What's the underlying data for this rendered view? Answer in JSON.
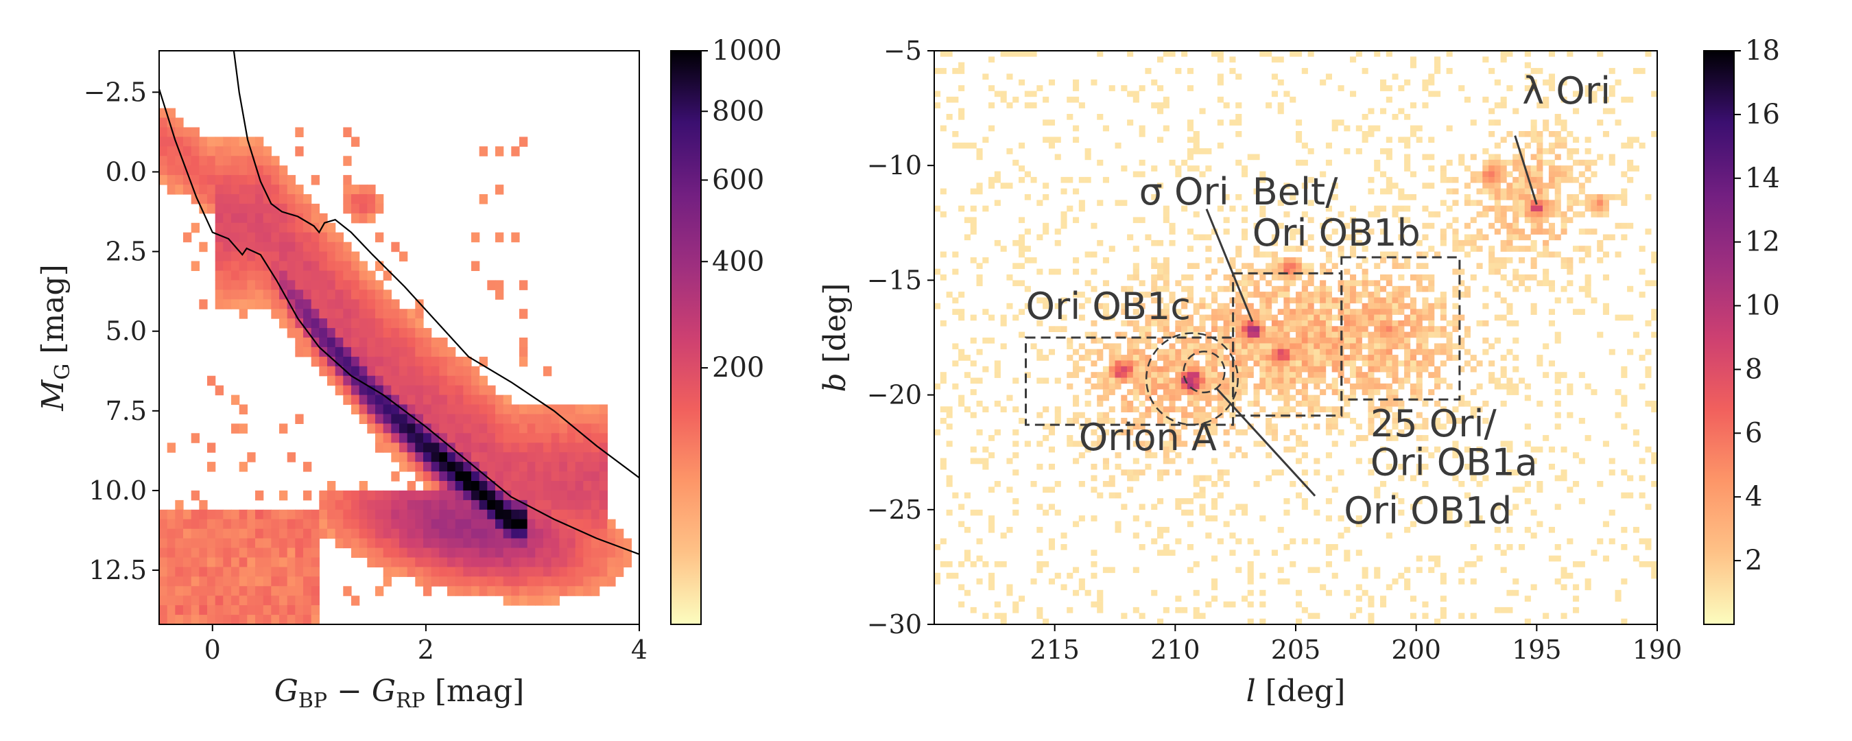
{
  "chart_data": [
    {
      "type": "heatmap",
      "panel": "left",
      "xlabel_main": "G",
      "xlabel_sub1": "BP",
      "xlabel_mid": " − ",
      "xlabel_main2": "G",
      "xlabel_sub2": "RP",
      "xlabel_unit": " [mag]",
      "ylabel_main": "M",
      "ylabel_sub": "G",
      "ylabel_unit": " [mag]",
      "xlim": [
        -0.5,
        4
      ],
      "ylim": [
        14.2,
        -3.8
      ],
      "y_inverted": true,
      "xticks": [
        {
          "v": 0,
          "label": "0"
        },
        {
          "v": 2,
          "label": "2"
        },
        {
          "v": 4,
          "label": "4"
        }
      ],
      "yticks": [
        {
          "v": -2.5,
          "label": "−2.5"
        },
        {
          "v": 0.0,
          "label": "0.0"
        },
        {
          "v": 2.5,
          "label": "2.5"
        },
        {
          "v": 5.0,
          "label": "5.0"
        },
        {
          "v": 7.5,
          "label": "7.5"
        },
        {
          "v": 10.0,
          "label": "10.0"
        },
        {
          "v": 12.5,
          "label": "12.5"
        }
      ],
      "colorbar": {
        "cmap": "magma_r",
        "range": [
          0,
          1000
        ],
        "scale": "sqrt",
        "ticks": [
          {
            "v": 200,
            "label": "200"
          },
          {
            "v": 400,
            "label": "400"
          },
          {
            "v": 600,
            "label": "600"
          },
          {
            "v": 800,
            "label": "800"
          },
          {
            "v": 1000,
            "label": "1000"
          }
        ]
      },
      "main_sequence_ridge": [
        [
          0.5,
          2.8
        ],
        [
          1.0,
          5.0
        ],
        [
          1.5,
          7.0
        ],
        [
          2.0,
          8.6
        ],
        [
          2.5,
          10.0
        ],
        [
          2.8,
          11.0
        ]
      ],
      "giant_branch_feature": [
        [
          1.25,
          0.5
        ],
        [
          1.5,
          1.4
        ]
      ],
      "selection_boundary_lower": [
        [
          -0.5,
          -2.6
        ],
        [
          -0.35,
          -1.0
        ],
        [
          -0.15,
          0.8
        ],
        [
          0.0,
          1.9
        ],
        [
          0.15,
          2.1
        ],
        [
          0.28,
          2.6
        ],
        [
          0.32,
          2.4
        ],
        [
          0.45,
          2.6
        ],
        [
          0.6,
          3.4
        ],
        [
          0.8,
          4.6
        ],
        [
          1.0,
          5.5
        ],
        [
          1.3,
          6.4
        ],
        [
          1.6,
          7.0
        ],
        [
          2.0,
          8.0
        ],
        [
          2.4,
          9.1
        ],
        [
          2.8,
          10.2
        ],
        [
          3.2,
          10.9
        ],
        [
          3.6,
          11.5
        ],
        [
          4.0,
          12.0
        ]
      ],
      "selection_boundary_upper": [
        [
          0.2,
          -3.8
        ],
        [
          0.25,
          -2.5
        ],
        [
          0.33,
          -1.0
        ],
        [
          0.45,
          0.3
        ],
        [
          0.55,
          1.0
        ],
        [
          0.65,
          1.25
        ],
        [
          0.8,
          1.4
        ],
        [
          0.95,
          1.7
        ],
        [
          1.0,
          1.9
        ],
        [
          1.05,
          1.6
        ],
        [
          1.15,
          1.5
        ],
        [
          1.3,
          1.9
        ],
        [
          1.5,
          2.6
        ],
        [
          1.8,
          3.6
        ],
        [
          2.1,
          4.7
        ],
        [
          2.4,
          5.8
        ],
        [
          2.8,
          6.6
        ],
        [
          3.2,
          7.5
        ],
        [
          3.6,
          8.6
        ],
        [
          4.0,
          9.6
        ]
      ]
    },
    {
      "type": "heatmap",
      "panel": "right",
      "xlabel_main": "l",
      "xlabel_unit": " [deg]",
      "ylabel_main": "b",
      "ylabel_unit": " [deg]",
      "xlim": [
        220,
        190
      ],
      "ylim": [
        -30,
        -5
      ],
      "x_inverted": true,
      "xticks": [
        {
          "v": 215,
          "label": "215"
        },
        {
          "v": 210,
          "label": "210"
        },
        {
          "v": 205,
          "label": "205"
        },
        {
          "v": 200,
          "label": "200"
        },
        {
          "v": 195,
          "label": "195"
        },
        {
          "v": 190,
          "label": "190"
        }
      ],
      "yticks": [
        {
          "v": -5,
          "label": "−5"
        },
        {
          "v": -10,
          "label": "−10"
        },
        {
          "v": -15,
          "label": "−15"
        },
        {
          "v": -20,
          "label": "−20"
        },
        {
          "v": -25,
          "label": "−25"
        },
        {
          "v": -30,
          "label": "−30"
        }
      ],
      "colorbar": {
        "cmap": "magma_r",
        "range": [
          0,
          18
        ],
        "ticks": [
          {
            "v": 2,
            "label": "2"
          },
          {
            "v": 4,
            "label": "4"
          },
          {
            "v": 6,
            "label": "6"
          },
          {
            "v": 8,
            "label": "8"
          },
          {
            "v": 10,
            "label": "10"
          },
          {
            "v": 12,
            "label": "12"
          },
          {
            "v": 14,
            "label": "14"
          },
          {
            "v": 16,
            "label": "16"
          },
          {
            "v": 18,
            "label": "18"
          }
        ]
      },
      "regions": [
        {
          "kind": "box",
          "l": [
            216.2,
            207.6
          ],
          "b": [
            -17.5,
            -21.3
          ]
        },
        {
          "kind": "box",
          "l": [
            207.6,
            203.1
          ],
          "b": [
            -14.7,
            -20.9
          ]
        },
        {
          "kind": "box",
          "l": [
            203.1,
            198.2
          ],
          "b": [
            -14.0,
            -20.2
          ]
        },
        {
          "kind": "circle",
          "l": 209.3,
          "b": -19.3,
          "r": 1.9
        },
        {
          "kind": "circle",
          "l": 208.8,
          "b": -19.0,
          "r": 0.85
        }
      ],
      "annotations": [
        {
          "text": "λ Ori",
          "l": 195.6,
          "b": -7.3,
          "line_from": [
            195.9,
            -8.7
          ],
          "line_to": [
            195.0,
            -11.7
          ]
        },
        {
          "text": "σ Ori",
          "l": 211.5,
          "b": -11.7,
          "line_from": [
            208.7,
            -11.9
          ],
          "line_to": [
            206.8,
            -16.8
          ]
        },
        {
          "text": "Belt/",
          "l": 206.8,
          "b": -11.7
        },
        {
          "text": "Ori OB1b",
          "l": 206.8,
          "b": -13.5
        },
        {
          "text": "Ori OB1c",
          "l": 216.2,
          "b": -16.7
        },
        {
          "text": "Orion A",
          "l": 214.0,
          "b": -22.4
        },
        {
          "text": "25 Ori/",
          "l": 201.9,
          "b": -21.8
        },
        {
          "text": "Ori OB1a",
          "l": 201.9,
          "b": -23.5
        },
        {
          "text": "Ori OB1d",
          "l": 203.0,
          "b": -25.6,
          "line_from": [
            204.2,
            -24.4
          ],
          "line_to": [
            208.3,
            -19.7
          ]
        }
      ],
      "overdensities": [
        {
          "l": 209.3,
          "b": -19.4,
          "peak": 14
        },
        {
          "l": 212.2,
          "b": -18.9,
          "peak": 10
        },
        {
          "l": 206.8,
          "b": -17.2,
          "peak": 12
        },
        {
          "l": 205.6,
          "b": -18.3,
          "peak": 9
        },
        {
          "l": 205.2,
          "b": -14.5,
          "peak": 7
        },
        {
          "l": 201.2,
          "b": -17.3,
          "peak": 6
        },
        {
          "l": 195.0,
          "b": -11.9,
          "peak": 9
        },
        {
          "l": 196.8,
          "b": -10.4,
          "peak": 7
        },
        {
          "l": 192.5,
          "b": -11.7,
          "peak": 5
        }
      ]
    }
  ]
}
